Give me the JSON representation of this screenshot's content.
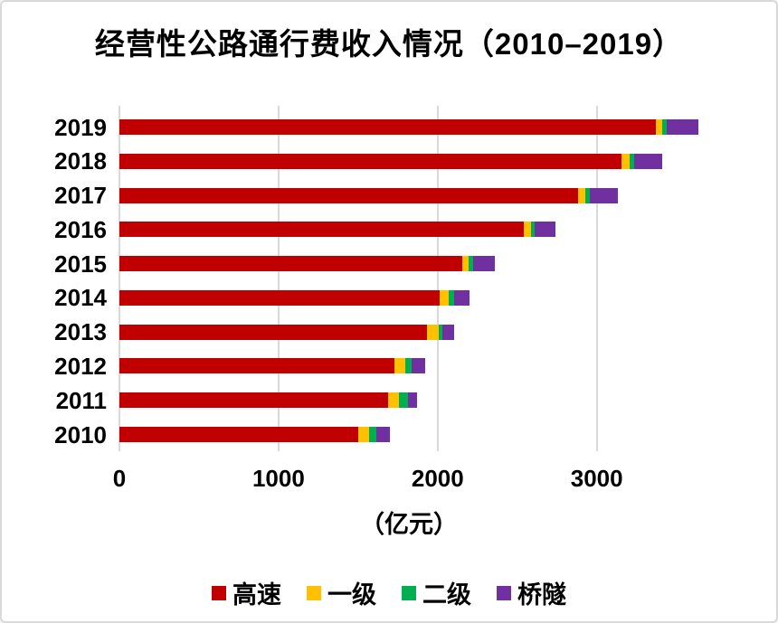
{
  "window": {
    "background": "#ffffff",
    "border_color": "#d9d9d9"
  },
  "chart_data": {
    "type": "bar",
    "orientation": "horizontal",
    "stacked": true,
    "title": "经营性公路通行费收入情况（2010–2019）",
    "unit_label": "（亿元）",
    "categories": [
      "2019",
      "2018",
      "2017",
      "2016",
      "2015",
      "2014",
      "2013",
      "2012",
      "2011",
      "2010"
    ],
    "series": [
      {
        "name": "高速",
        "color": "#C00000",
        "values": [
          3370,
          3156,
          2885,
          2542,
          2152,
          2013,
          1934,
          1731,
          1687,
          1503
        ]
      },
      {
        "name": "一级",
        "color": "#FFC000",
        "values": [
          40,
          49,
          45,
          42,
          44,
          59,
          70,
          66,
          70,
          66
        ]
      },
      {
        "name": "二级",
        "color": "#00B050",
        "values": [
          32,
          28,
          27,
          28,
          28,
          32,
          25,
          38,
          57,
          47
        ]
      },
      {
        "name": "桥隧",
        "color": "#7030A0",
        "values": [
          194,
          178,
          175,
          131,
          133,
          95,
          76,
          89,
          59,
          85
        ]
      }
    ],
    "totals": [
      3636,
      3411,
      3132,
      2743,
      2357,
      2199,
      2105,
      1924,
      1873,
      1701
    ],
    "x_axis": {
      "ticks": [
        0,
        1000,
        2000,
        3000
      ],
      "max": 3640
    },
    "grid": "vertical-lines-on",
    "legend_position": "bottom",
    "colors": {
      "grid": "#d9d9d9",
      "text": "#000000"
    }
  }
}
